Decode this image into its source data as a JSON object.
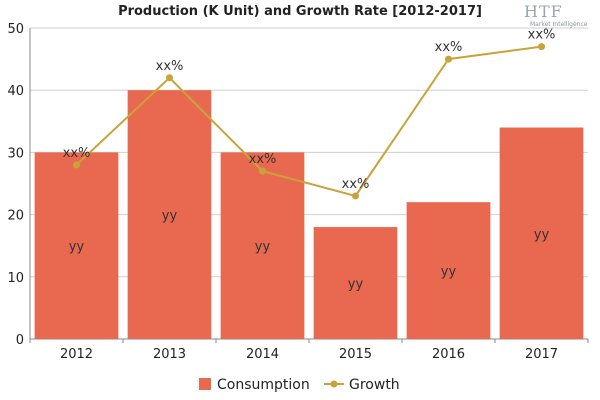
{
  "chart_data": {
    "type": "bar",
    "title": "Production (K Unit) and Growth Rate [2012-2017]",
    "categories": [
      "2012",
      "2013",
      "2014",
      "2015",
      "2016",
      "2017"
    ],
    "series": [
      {
        "name": "Consumption",
        "type": "bar",
        "values": [
          30,
          40,
          30,
          18,
          22,
          34
        ],
        "labels": [
          "yy",
          "yy",
          "yy",
          "yy",
          "yy",
          "yy"
        ],
        "color": "#e8694f"
      },
      {
        "name": "Growth",
        "type": "line",
        "values": [
          28,
          42,
          27,
          23,
          45,
          47
        ],
        "labels": [
          "xx%",
          "xx%",
          "xx%",
          "xx%",
          "xx%",
          "xx%"
        ],
        "color": "#c9a33a"
      }
    ],
    "yticks": [
      0,
      10,
      20,
      30,
      40,
      50
    ],
    "ylim": [
      0,
      50
    ],
    "xlabel": "",
    "ylabel": "",
    "grid": true,
    "legend": "bottom-center"
  },
  "logo": {
    "text": "HTF",
    "subtext": "Market Intelligence"
  }
}
